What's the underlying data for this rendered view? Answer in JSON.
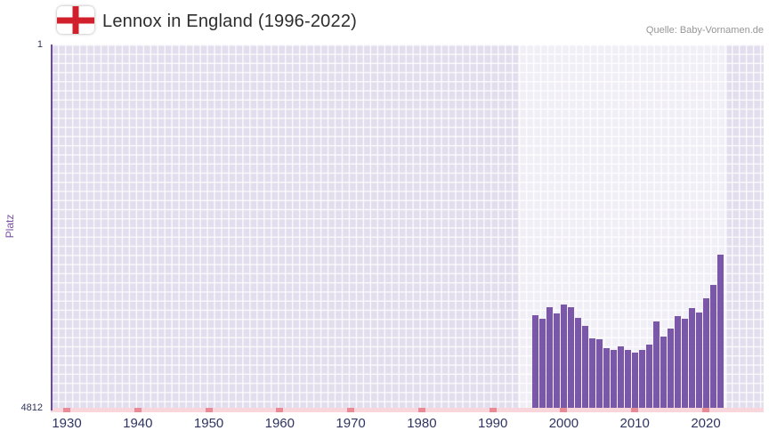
{
  "header": {
    "title": "Lennox in England (1996-2022)",
    "source": "Quelle: Baby-Vornamen.de"
  },
  "chart_data": {
    "type": "bar",
    "title": "Lennox in England (1996-2022)",
    "xlabel": "",
    "ylabel": "Platz",
    "y_axis": {
      "top_label": "1",
      "bottom_label": "4812",
      "min": 1,
      "max": 4812,
      "inverted": true
    },
    "x_ticks": [
      "1930",
      "1940",
      "1950",
      "1960",
      "1970",
      "1980",
      "1990",
      "2000",
      "2010",
      "2020"
    ],
    "x_range": [
      1926,
      2024
    ],
    "grid": true,
    "legend": "none",
    "highlight_region": {
      "start_year": 1994,
      "end_year": 2022.5
    },
    "series": [
      {
        "name": "Platz",
        "points": [
          {
            "year": 1996,
            "rank": 3560
          },
          {
            "year": 1997,
            "rank": 3610
          },
          {
            "year": 1998,
            "rank": 3450
          },
          {
            "year": 1999,
            "rank": 3530
          },
          {
            "year": 2000,
            "rank": 3420
          },
          {
            "year": 2001,
            "rank": 3450
          },
          {
            "year": 2002,
            "rank": 3590
          },
          {
            "year": 2003,
            "rank": 3700
          },
          {
            "year": 2004,
            "rank": 3860
          },
          {
            "year": 2005,
            "rank": 3880
          },
          {
            "year": 2006,
            "rank": 3990
          },
          {
            "year": 2007,
            "rank": 4020
          },
          {
            "year": 2008,
            "rank": 3970
          },
          {
            "year": 2009,
            "rank": 4020
          },
          {
            "year": 2010,
            "rank": 4050
          },
          {
            "year": 2011,
            "rank": 4010
          },
          {
            "year": 2012,
            "rank": 3950
          },
          {
            "year": 2013,
            "rank": 3640
          },
          {
            "year": 2014,
            "rank": 3840
          },
          {
            "year": 2015,
            "rank": 3740
          },
          {
            "year": 2016,
            "rank": 3570
          },
          {
            "year": 2017,
            "rank": 3610
          },
          {
            "year": 2018,
            "rank": 3470
          },
          {
            "year": 2019,
            "rank": 3520
          },
          {
            "year": 2020,
            "rank": 3340
          },
          {
            "year": 2021,
            "rank": 3160
          },
          {
            "year": 2022,
            "rank": 2760
          }
        ]
      }
    ],
    "colors": {
      "bar": "#7b57aa",
      "plot_background": "#e3deed",
      "grid_line": "#ffffff",
      "highlight_band": "#f1edf7",
      "y_axis_line": "#6b4aa2",
      "x_axis_strip": "#f8d6dc",
      "x_axis_tick": "#e98b96",
      "axis_text": "#31355a",
      "ylabel_text": "#7a50a5",
      "flag_cross": "#d21f2c"
    }
  }
}
